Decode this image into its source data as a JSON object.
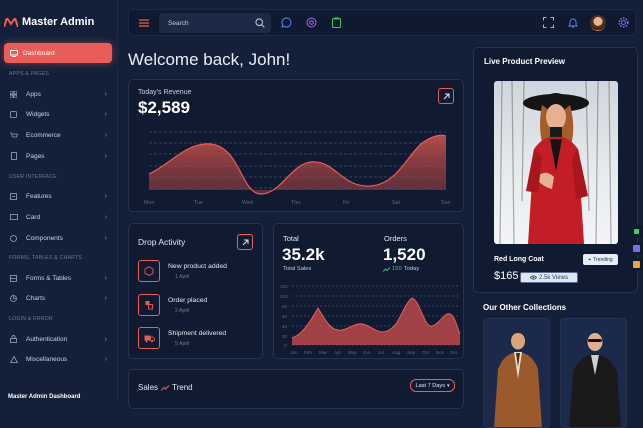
{
  "app": {
    "title": "Master Admin",
    "logo_glyph": "M"
  },
  "sidebar": {
    "dashboard": "Dashboard",
    "sections": {
      "apps_pages": "APPS & PAGES",
      "ui": "USER INTERFACE",
      "forms": "FORMS, TABLES & CHARTS",
      "login": "LOGIN & ERROR"
    },
    "items": [
      "Apps",
      "Widgets",
      "Ecommerce",
      "Pages",
      "Features",
      "Card",
      "Components",
      "Forms & Tables",
      "Charts",
      "Authentication",
      "Miscellaneous"
    ],
    "footer": "Master Admin Dashboard"
  },
  "topbar": {
    "search_placeholder": "Search"
  },
  "welcome": "Welcome back, John!",
  "revenue": {
    "label": "Today's Revenue",
    "value": "$2,589",
    "days": [
      "Mon",
      "Tue",
      "Wed",
      "Thu",
      "Fri",
      "Sat",
      "Sun"
    ]
  },
  "activity": {
    "title": "Drop Activity",
    "items": [
      {
        "title": "New product added",
        "date": "1 April"
      },
      {
        "title": "Order placed",
        "date": "2 April"
      },
      {
        "title": "Shipment delivered",
        "date": "5 April"
      }
    ]
  },
  "stats": {
    "total_label": "Total",
    "total_value": "35.2k",
    "total_sub": "Total Sales",
    "orders_label": "Orders",
    "orders_value": "1,520",
    "orders_change": "150",
    "orders_today": "Today",
    "months": [
      "Jan",
      "Feb",
      "Mar",
      "Apr",
      "May",
      "Jun",
      "Jul",
      "Aug",
      "Sep",
      "Oct",
      "Nov",
      "Dec"
    ],
    "y_ticks": [
      "120",
      "100",
      "80",
      "60",
      "40",
      "20",
      "0"
    ]
  },
  "sales": {
    "title": "Sales",
    "trend": "Trend",
    "range": "Last 7 Days"
  },
  "preview": {
    "title": "Live Product Preview",
    "product": "Red Long Coat",
    "badge": "Trending",
    "price": "$165",
    "views": "2.5k Views"
  },
  "collections": {
    "title": "Our Other Collections"
  },
  "colors": {
    "accent": "#e85d58",
    "bg": "#14203a",
    "card": "#101b32",
    "green": "#3ecf6a",
    "teal": "#2fc4b2"
  }
}
